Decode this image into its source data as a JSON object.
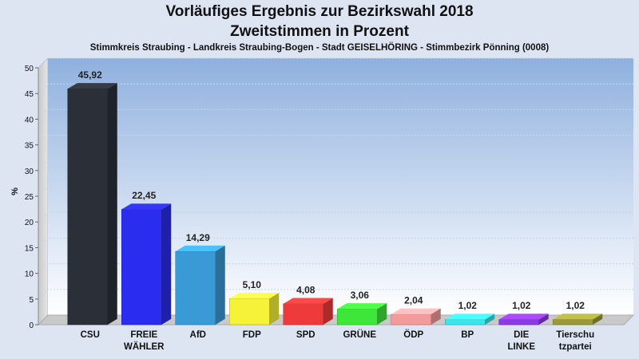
{
  "chart_data": {
    "type": "bar",
    "title": "Vorläufiges Ergebnis zur Bezirkswahl 2018",
    "subtitle_line": "Zweitstimmen in Prozent",
    "subtitle": "Stimmkreis Straubing - Landkreis Straubing-Bogen - Stadt GEISELHÖRING - Stimmbezirk Pönning (0008)",
    "ylabel": "%",
    "ylim": [
      0,
      50
    ],
    "yticks": [
      0,
      5,
      10,
      15,
      20,
      25,
      30,
      35,
      40,
      45,
      50
    ],
    "grid": true,
    "categories": [
      [
        "CSU"
      ],
      [
        "FREIE",
        "WÄHLER"
      ],
      [
        "AfD"
      ],
      [
        "FDP"
      ],
      [
        "SPD"
      ],
      [
        "GRÜNE"
      ],
      [
        "ÖDP"
      ],
      [
        "BP"
      ],
      [
        "DIE",
        "LINKE"
      ],
      [
        "Tierschu",
        "tzpartei"
      ]
    ],
    "values": [
      45.92,
      22.45,
      14.29,
      5.1,
      4.08,
      3.06,
      2.04,
      1.02,
      1.02,
      1.02
    ],
    "value_labels": [
      "45,92",
      "22,45",
      "14,29",
      "5,10",
      "4,08",
      "3,06",
      "2,04",
      "1,02",
      "1,02",
      "1,02"
    ],
    "colors": [
      "#2b2f37",
      "#2a2cee",
      "#3a9ad6",
      "#f6f23a",
      "#ee3a3a",
      "#3ee63a",
      "#f39a9a",
      "#3ae6ea",
      "#8a3ae6",
      "#9a9a3a"
    ]
  }
}
